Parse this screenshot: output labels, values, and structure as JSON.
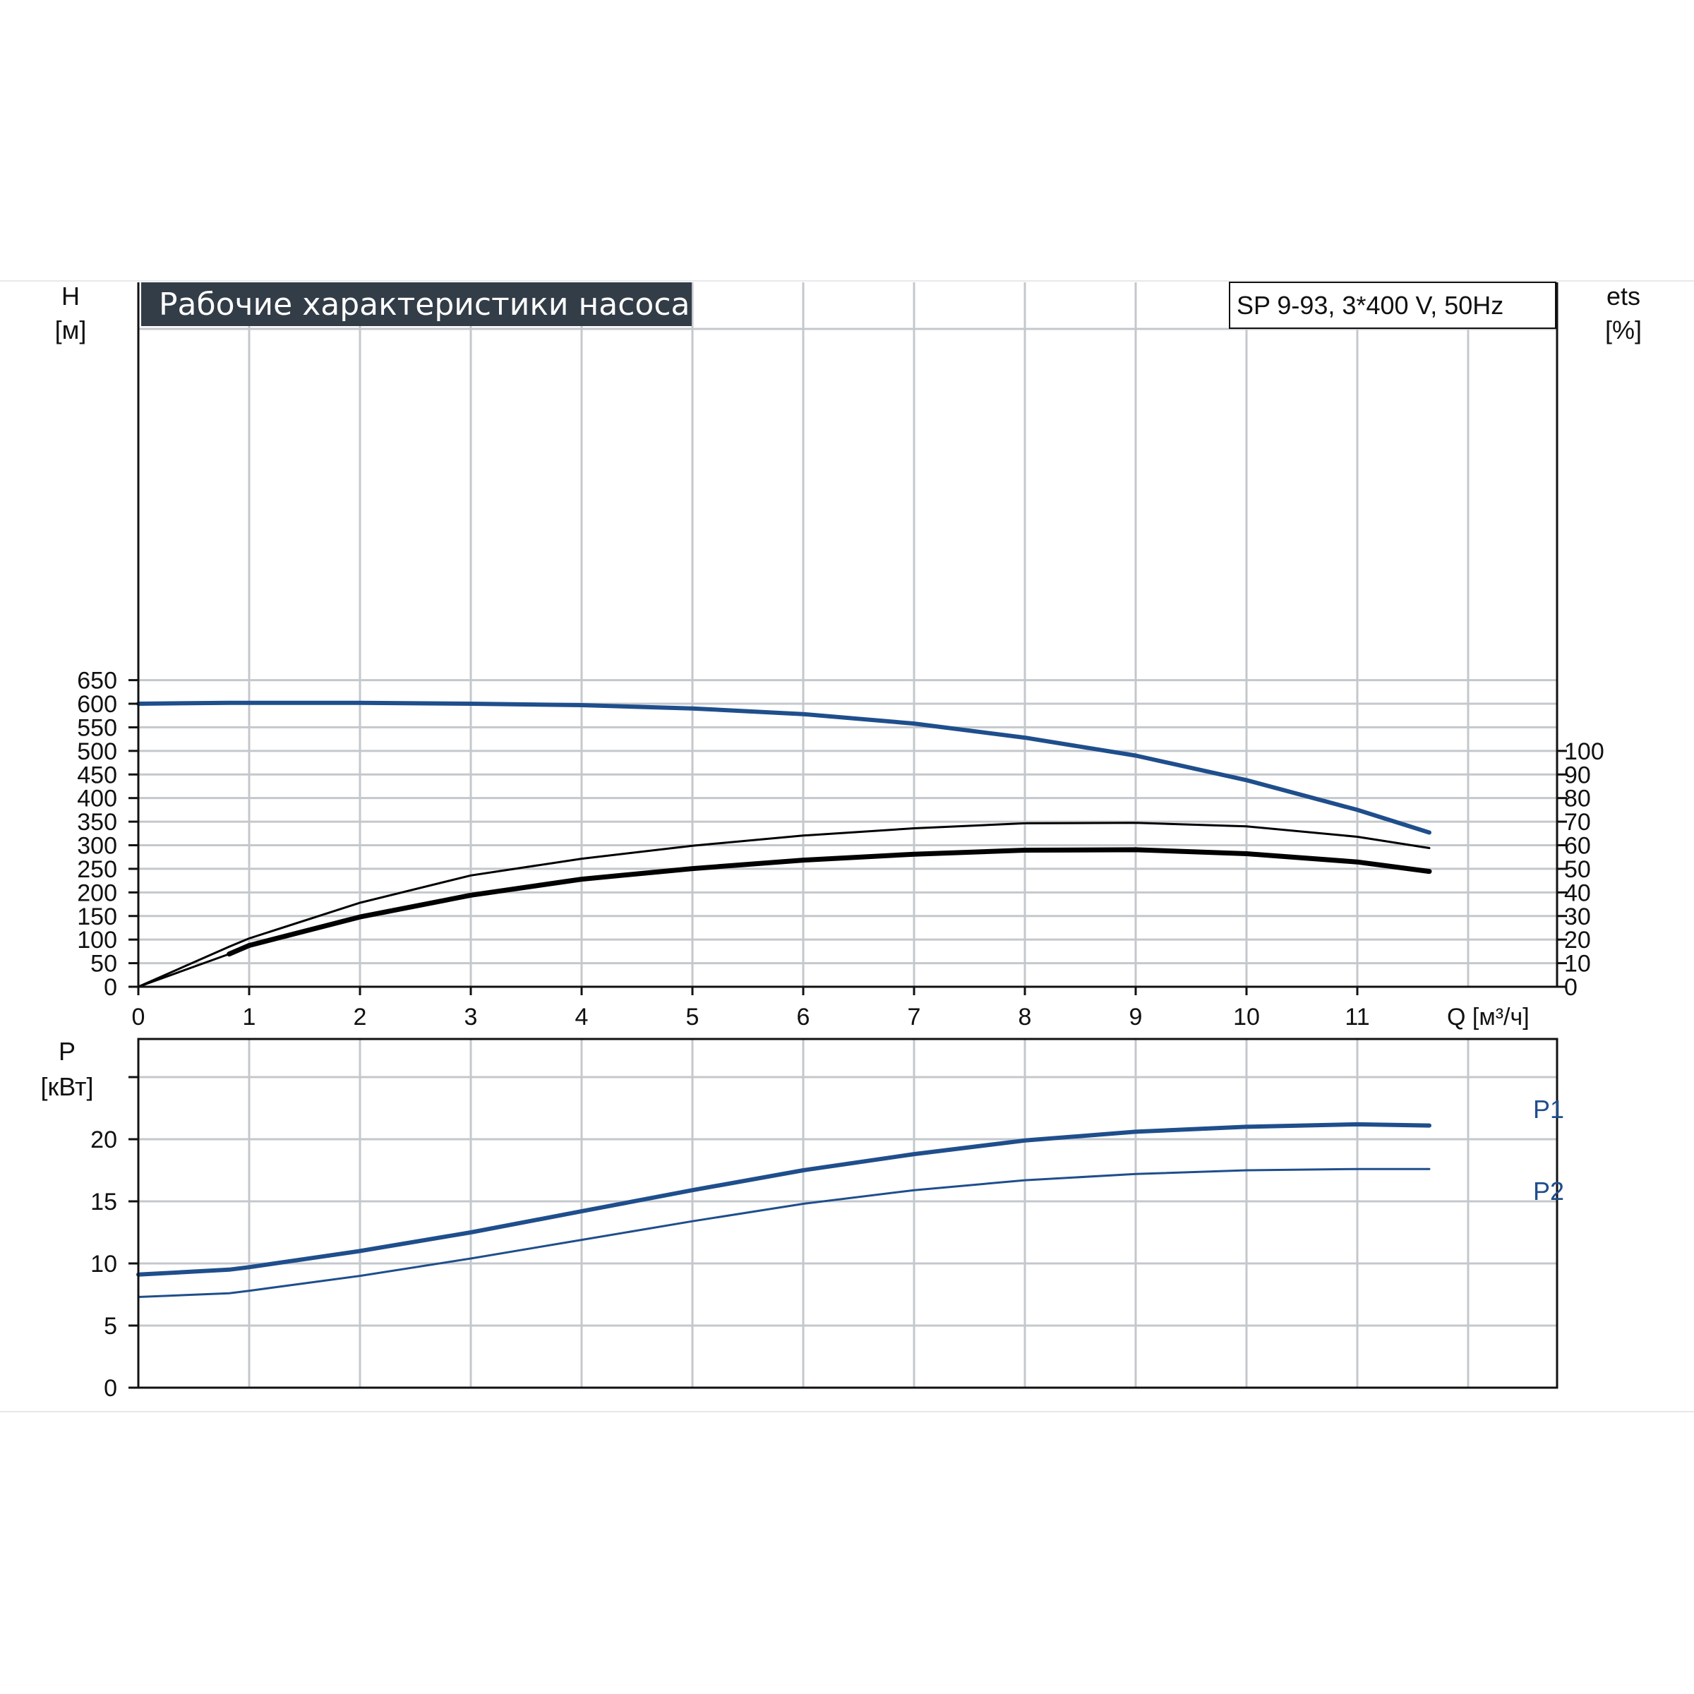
{
  "title": "Рабочие характеристики насоса",
  "model": "SP 9-93, 3*400 V, 50Hz",
  "colors": {
    "blue": "#1f4e8c",
    "black": "#000000",
    "grid": "#c4c8cc",
    "title_bg": "#333d48"
  },
  "chart_data": [
    {
      "type": "line",
      "name": "head-efficiency",
      "x_label": "Q [м³/ч]",
      "y_label_left": [
        "H",
        "[м]"
      ],
      "y_label_right": [
        "ets",
        "[%]"
      ],
      "xlim": [
        0,
        12.8
      ],
      "ylim_left": [
        0,
        700
      ],
      "ylim_right": [
        0,
        140
      ],
      "x_ticks": [
        "0",
        "1",
        "2",
        "3",
        "4",
        "5",
        "6",
        "7",
        "8",
        "9",
        "10",
        "11"
      ],
      "y_ticks_left": [
        "0",
        "50",
        "100",
        "150",
        "200",
        "250",
        "300",
        "350",
        "400",
        "450",
        "500",
        "550",
        "600",
        "650"
      ],
      "y_ticks_right": [
        "0",
        "10",
        "20",
        "30",
        "40",
        "50",
        "60",
        "70",
        "80",
        "90",
        "100"
      ],
      "grid": true,
      "series": [
        {
          "name": "",
          "axis": "left",
          "color": "#1f4e8c",
          "width": 6,
          "x": [
            0,
            0.82,
            2,
            3,
            4,
            5,
            6,
            7,
            8,
            9,
            10,
            11,
            11.65
          ],
          "y": [
            600,
            602,
            602,
            600,
            597,
            590,
            578,
            558,
            528,
            490,
            438,
            375,
            327
          ]
        },
        {
          "name": "",
          "axis": "left",
          "color": "#1f4e8c",
          "width": 3,
          "dash": true,
          "x": [
            0,
            0.82
          ],
          "y": [
            600,
            602
          ]
        },
        {
          "name": "",
          "axis": "right",
          "color": "#000000",
          "width": 3,
          "x": [
            0,
            0.82,
            1,
            2,
            3,
            4,
            5,
            6,
            7,
            8,
            9,
            10,
            11,
            11.65
          ],
          "y": [
            0,
            17,
            20.5,
            35.6,
            47.2,
            54.3,
            59.8,
            64.1,
            67.2,
            69.3,
            69.5,
            68.0,
            63.6,
            58.8
          ]
        },
        {
          "name": "",
          "axis": "right",
          "color": "#000000",
          "width": 7,
          "x": [
            0.82,
            1,
            2,
            3,
            4,
            5,
            6,
            7,
            8,
            9,
            10,
            11,
            11.65
          ],
          "y": [
            13.9,
            17.5,
            29.6,
            38.8,
            45.6,
            50.1,
            53.7,
            56.2,
            57.9,
            58.1,
            56.4,
            52.9,
            48.9
          ]
        },
        {
          "name": "",
          "axis": "right",
          "color": "#000000",
          "width": 3,
          "x": [
            0,
            0.82
          ],
          "y": [
            0,
            13.9
          ]
        }
      ]
    },
    {
      "type": "line",
      "name": "power",
      "y_label": [
        "P",
        "[кВт]"
      ],
      "xlim": [
        0,
        12.8
      ],
      "ylim": [
        0,
        25
      ],
      "y_ticks": [
        "0",
        "5",
        "10",
        "15",
        "20"
      ],
      "grid": true,
      "series": [
        {
          "name": "P1",
          "color": "#1f4e8c",
          "width": 6,
          "x": [
            0,
            0.82,
            1,
            2,
            3,
            4,
            5,
            6,
            7,
            8,
            9,
            10,
            11,
            11.65
          ],
          "y": [
            9.1,
            9.5,
            9.7,
            11.0,
            12.5,
            14.2,
            15.9,
            17.5,
            18.8,
            19.9,
            20.6,
            21.0,
            21.2,
            21.1
          ]
        },
        {
          "name": "P2",
          "color": "#1f4e8c",
          "width": 3,
          "x": [
            0,
            0.82,
            1,
            2,
            3,
            4,
            5,
            6,
            7,
            8,
            9,
            10,
            11,
            11.65
          ],
          "y": [
            7.3,
            7.6,
            7.8,
            9.0,
            10.4,
            11.9,
            13.4,
            14.8,
            15.9,
            16.7,
            17.2,
            17.5,
            17.6,
            17.6
          ]
        }
      ]
    }
  ]
}
